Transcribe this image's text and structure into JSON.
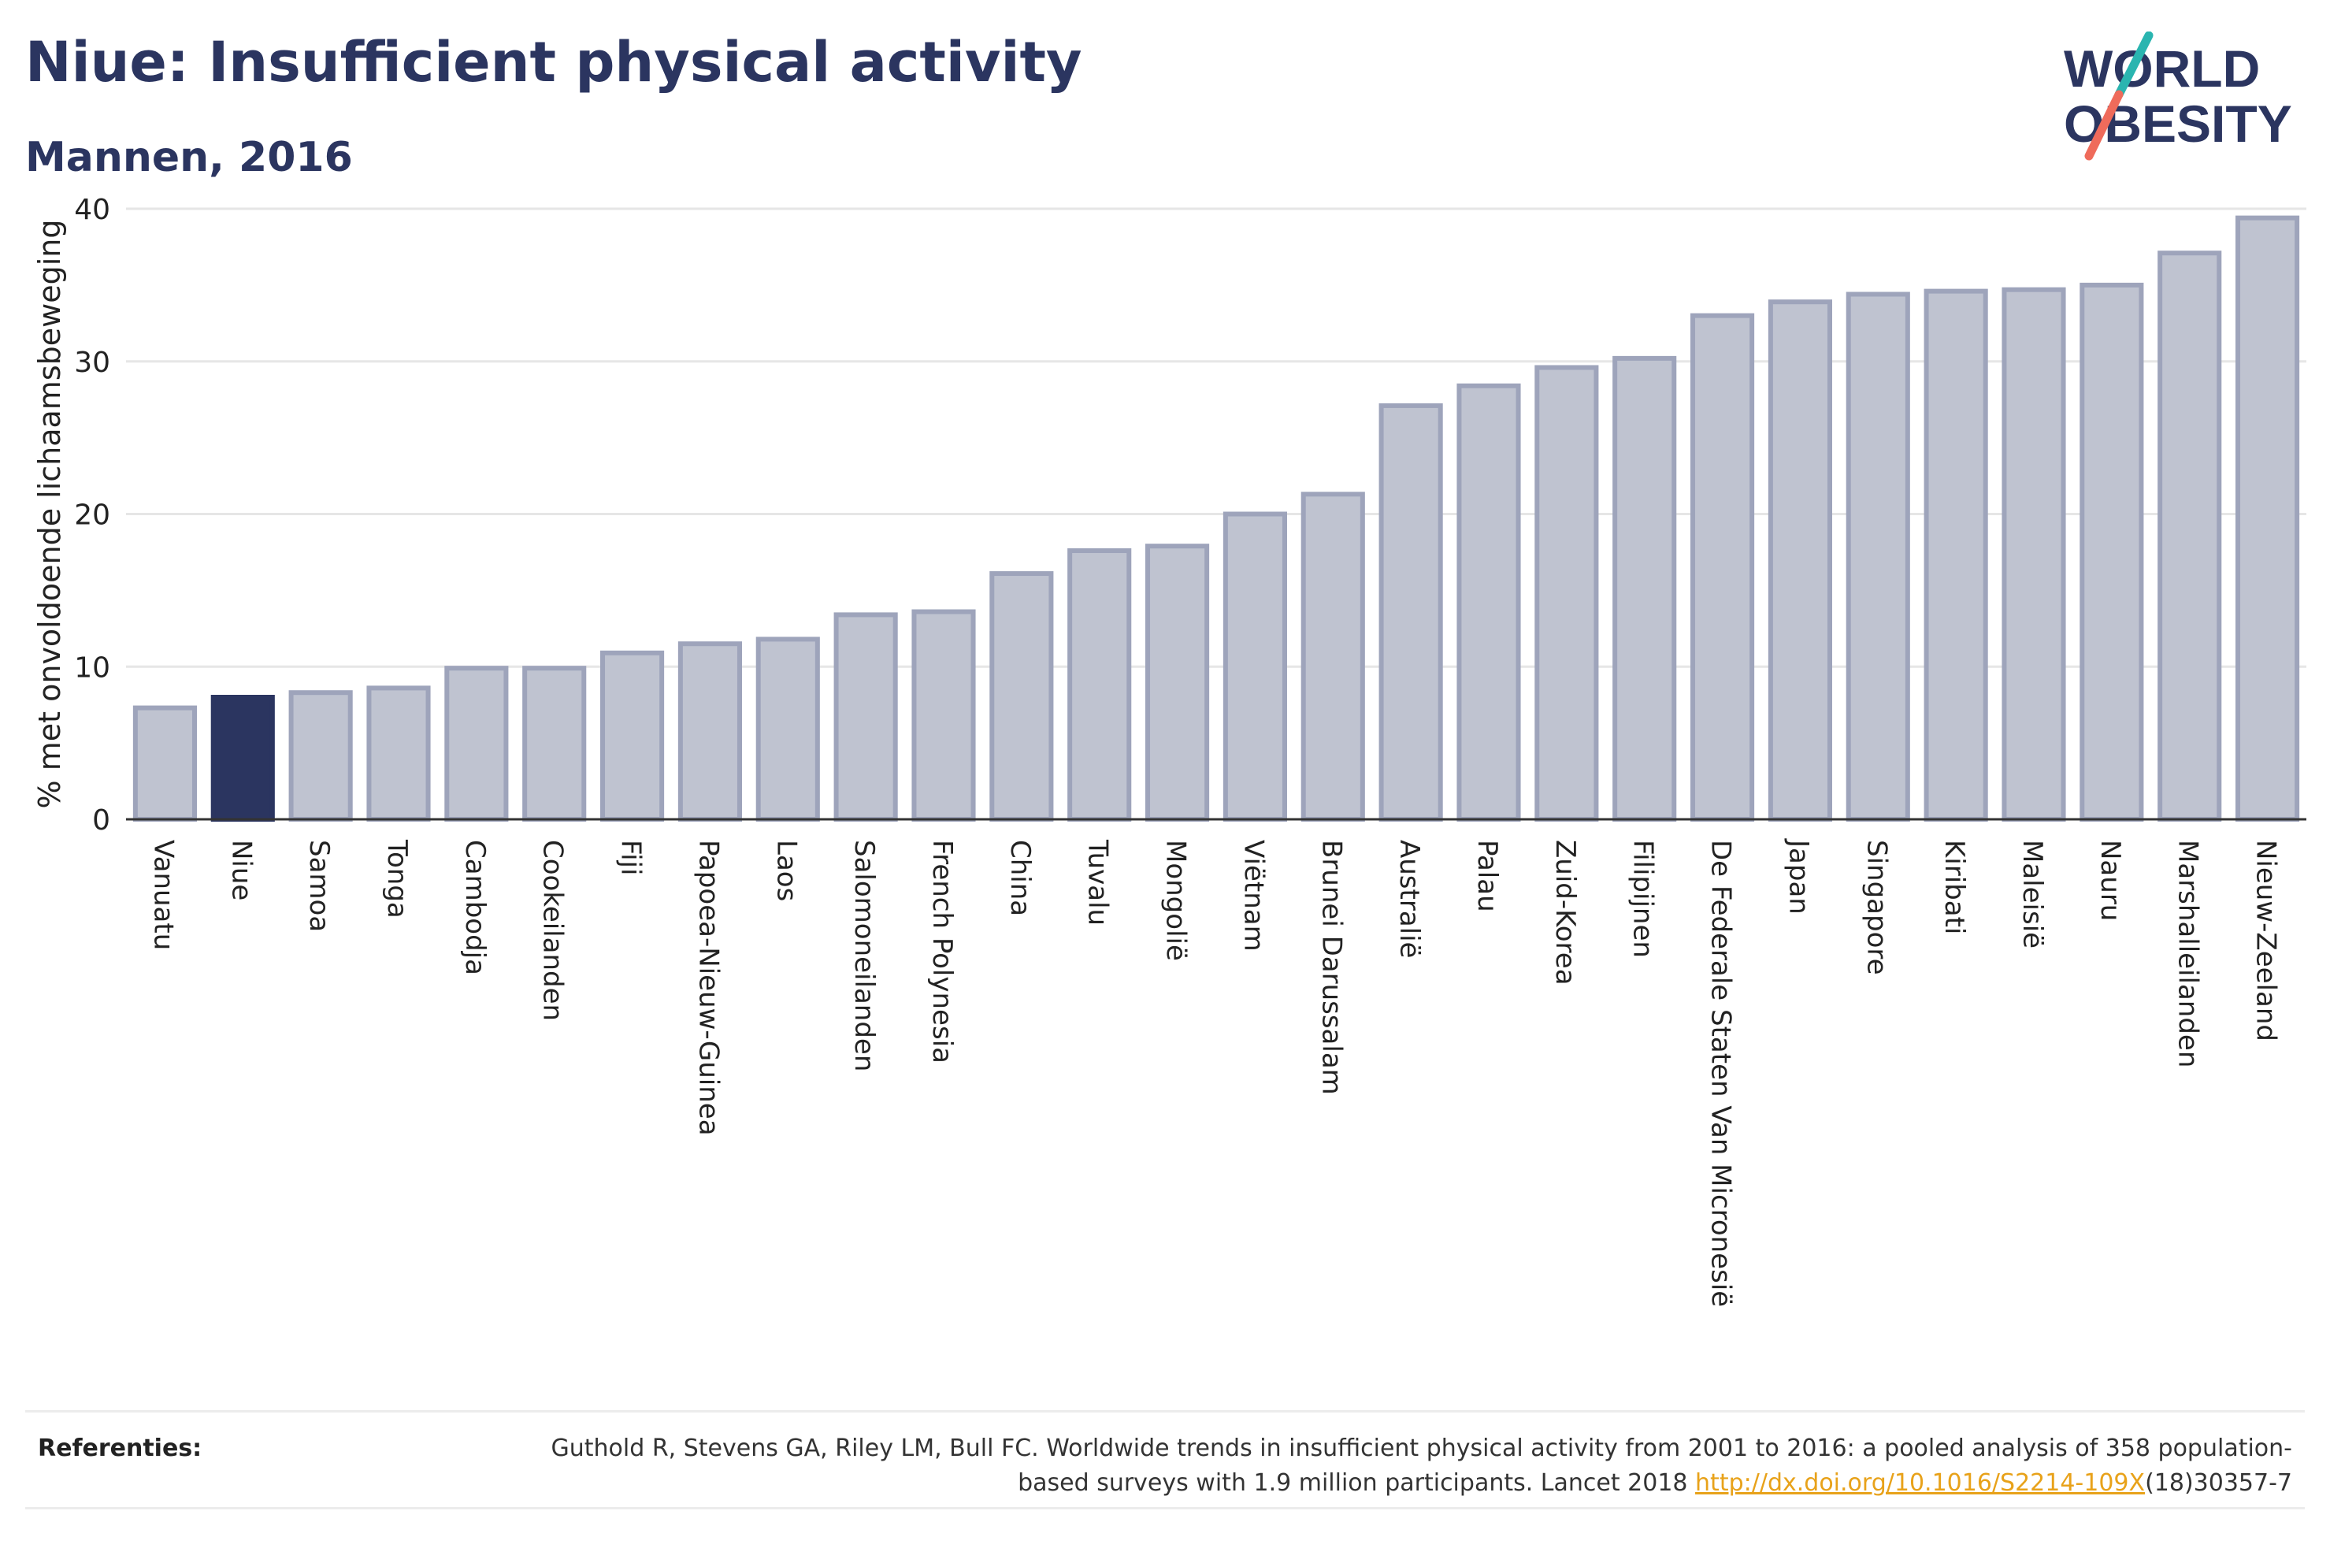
{
  "header": {
    "title": "Niue: Insufficient physical activity",
    "subtitle": "Mannen, 2016"
  },
  "logo": {
    "line1": "WORLD",
    "line2": "OBESITY"
  },
  "colors": {
    "highlight": "#2b3560",
    "bar": "#bfc3d0",
    "bar_border": "#9ea4bb",
    "grid": "#e6e6e6",
    "text": "#2b3560",
    "logo_teal": "#2ab5b0",
    "logo_coral": "#ef6b5b"
  },
  "chart_data": {
    "type": "bar",
    "title": "Niue: Insufficient physical activity",
    "subtitle": "Mannen, 2016",
    "xlabel": "",
    "ylabel": "% met onvoldoende lichaamsbeweging",
    "ylim": [
      0,
      40
    ],
    "yticks": [
      0,
      10,
      20,
      30,
      40
    ],
    "grid": true,
    "highlight": "Niue",
    "categories": [
      "Vanuatu",
      "Niue",
      "Samoa",
      "Tonga",
      "Cambodja",
      "Cookeilanden",
      "Fiji",
      "Papoea-Nieuw-Guinea",
      "Laos",
      "Salomoneilanden",
      "French Polynesia",
      "China",
      "Tuvalu",
      "Mongolië",
      "Viëtnam",
      "Brunei Darussalam",
      "Australië",
      "Palau",
      "Zuid-Korea",
      "Filipijnen",
      "De Federale Staten Van Micronesië",
      "Japan",
      "Singapore",
      "Kiribati",
      "Maleisië",
      "Nauru",
      "Marshalleilanden",
      "Nieuw-Zeeland"
    ],
    "values": [
      7.3,
      8.0,
      8.3,
      8.6,
      9.9,
      9.9,
      10.9,
      11.5,
      11.8,
      13.4,
      13.6,
      16.1,
      17.6,
      17.9,
      20.0,
      21.3,
      27.1,
      28.4,
      29.6,
      30.2,
      33.0,
      33.9,
      34.4,
      34.6,
      34.7,
      35.0,
      37.1,
      39.4
    ]
  },
  "references": {
    "label": "Referenties:",
    "text_before": "Guthold R, Stevens GA, Riley LM, Bull FC. Worldwide trends in insufficient physical activity from 2001 to 2016: a pooled analysis of 358 population-based surveys with 1.9 million participants. Lancet 2018 ",
    "link": "http://dx.doi.org/10.1016/S2214-109X",
    "text_after": "(18)30357-7"
  }
}
